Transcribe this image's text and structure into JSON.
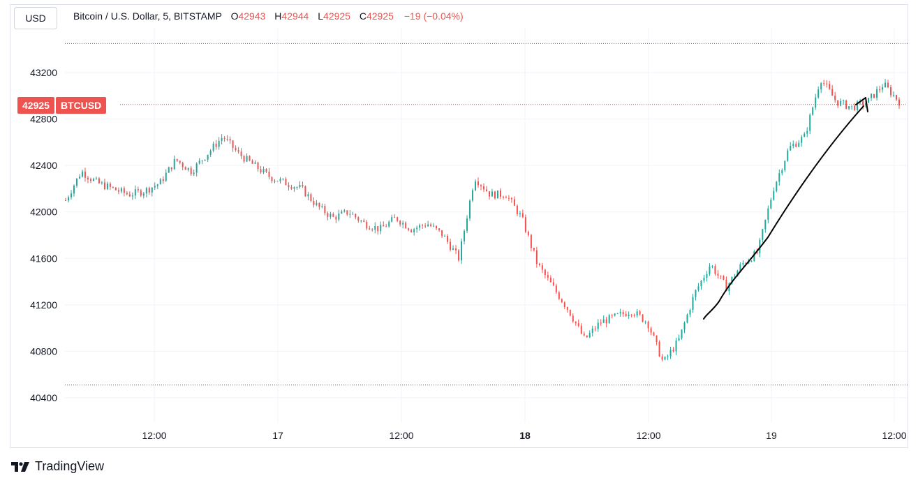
{
  "currency_button": "USD",
  "legend": {
    "symbol_description": "Bitcoin / U.S. Dollar, 5, BITSTAMP",
    "open_label": "O",
    "open": "42943",
    "high_label": "H",
    "high": "42944",
    "low_label": "L",
    "low": "42925",
    "close_label": "C",
    "close": "42925",
    "change": "−19 (−0.04%)"
  },
  "last_price_badge": {
    "price": "42925",
    "symbol": "BTCUSD"
  },
  "brand": {
    "name": "TradingView",
    "icon": "tradingview-logo-icon"
  },
  "colors": {
    "up": "#26a69a",
    "down": "#ef5350",
    "grid": "#f0f3fa",
    "annotation": "#000000"
  },
  "chart_data": {
    "type": "candlestick",
    "interval": "5",
    "exchange": "BITSTAMP",
    "y_ticks": [
      43200,
      42800,
      42400,
      42000,
      41600,
      41200,
      40800,
      40400
    ],
    "x_ticks": [
      "12:00",
      "17",
      "12:00",
      "18",
      "12:00",
      "19",
      "12:00"
    ],
    "bold_x_ticks": [
      "18"
    ],
    "high_line": 43450,
    "low_line": 40510,
    "last_price": 42925,
    "ylim": [
      40250,
      43600
    ],
    "close_series_approx": [
      42100,
      42350,
      42250,
      42200,
      42150,
      42180,
      42250,
      42450,
      42350,
      42500,
      42650,
      42500,
      42400,
      42300,
      42250,
      42200,
      42050,
      41950,
      42000,
      41900,
      41850,
      41950,
      41850,
      41900,
      41800,
      41600,
      42300,
      42150,
      42150,
      41950,
      41550,
      41350,
      41150,
      40900,
      41050,
      41100,
      41150,
      41050,
      40700,
      40900,
      41300,
      41550,
      41350,
      41550,
      41650,
      42200,
      42550,
      42650,
      43150,
      42950,
      42900,
      42950,
      43100,
      42950
    ],
    "annotation": "hand-drawn arrow pointing up toward recent price"
  }
}
